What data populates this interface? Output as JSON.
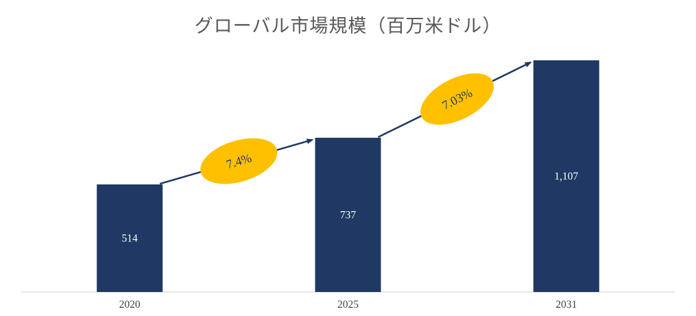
{
  "chart_data": {
    "type": "bar",
    "title": "グローバル市場規模（百万米ドル）",
    "categories": [
      "2020",
      "2025",
      "2031"
    ],
    "values": [
      514,
      737,
      1107
    ],
    "value_labels": [
      "514",
      "737",
      "1,107"
    ],
    "growth_annotations": [
      {
        "label": "7.4%",
        "from": "2020",
        "to": "2025"
      },
      {
        "label": "7.03%",
        "from": "2025",
        "to": "2031"
      }
    ],
    "ylim": [
      0,
      1107
    ],
    "grid": false,
    "legend": false
  },
  "colors": {
    "bar": "#1F3864",
    "arrow": "#1F3864",
    "ellipse": "#FFC000",
    "ellipse_text": "#1F3864",
    "value_label": "#FFFFFF",
    "axis_line": "#D9D9D9",
    "title": "#595959",
    "tick_label": "#404040"
  }
}
